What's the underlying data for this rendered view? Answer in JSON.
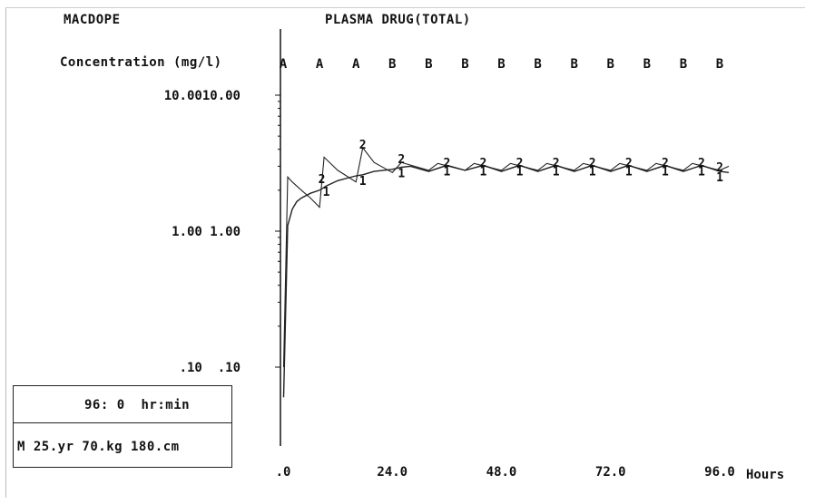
{
  "header": {
    "program": "MACDOPE",
    "plot_title": "PLASMA DRUG(TOTAL)",
    "ylabel": "Concentration (mg/l)"
  },
  "info": {
    "time_display": "96: 0  hr:min",
    "patient": "M 25.yr 70.kg 180.cm"
  },
  "chart_data": {
    "type": "line",
    "title": "PLASMA DRUG(TOTAL)",
    "ylabel": "Concentration (mg/l)",
    "xlabel": "Hours",
    "y_scale": "log",
    "ylim": [
      0.05,
      10
    ],
    "xlim": [
      0,
      100
    ],
    "y_ticks": [
      {
        "value": 10,
        "label": "10.0010.00"
      },
      {
        "value": 1,
        "label": "1.00 1.00"
      },
      {
        "value": 0.1,
        "label": ".10  .10"
      }
    ],
    "x_ticks": [
      {
        "value": 0,
        "label": ".0"
      },
      {
        "value": 24,
        "label": "24.0"
      },
      {
        "value": 48,
        "label": "48.0"
      },
      {
        "value": 72,
        "label": "72.0"
      },
      {
        "value": 96,
        "label": "96.0"
      }
    ],
    "dose_markers": [
      {
        "x": 0,
        "label": "A"
      },
      {
        "x": 8,
        "label": "A"
      },
      {
        "x": 16,
        "label": "A"
      },
      {
        "x": 24,
        "label": "B"
      },
      {
        "x": 32,
        "label": "B"
      },
      {
        "x": 40,
        "label": "B"
      },
      {
        "x": 48,
        "label": "B"
      },
      {
        "x": 56,
        "label": "B"
      },
      {
        "x": 64,
        "label": "B"
      },
      {
        "x": 72,
        "label": "B"
      },
      {
        "x": 80,
        "label": "B"
      },
      {
        "x": 88,
        "label": "B"
      },
      {
        "x": 96,
        "label": "B"
      }
    ],
    "series": [
      {
        "name": "1",
        "x": [
          0.1,
          1,
          2,
          3,
          4,
          6,
          8,
          9.5,
          12,
          16,
          17.5,
          20,
          24,
          26,
          28,
          32,
          36,
          40,
          44,
          48,
          52,
          56,
          60,
          64,
          68,
          72,
          76,
          80,
          84,
          88,
          92,
          96,
          98
        ],
        "values": [
          0.06,
          1.1,
          1.45,
          1.65,
          1.75,
          1.9,
          2.0,
          2.15,
          2.35,
          2.55,
          2.6,
          2.75,
          2.85,
          2.95,
          3.0,
          2.75,
          3.05,
          2.8,
          3.05,
          2.75,
          3.05,
          2.75,
          3.05,
          2.75,
          3.05,
          2.75,
          3.05,
          2.75,
          3.05,
          2.75,
          3.05,
          2.75,
          2.7
        ]
      },
      {
        "name": "2",
        "x": [
          0.1,
          1,
          2,
          4,
          6,
          8,
          9,
          12,
          16,
          17.5,
          20,
          24,
          26,
          32,
          34,
          40,
          42,
          48,
          50,
          56,
          58,
          64,
          66,
          72,
          74,
          80,
          82,
          88,
          90,
          96,
          98
        ],
        "values": [
          0.1,
          2.5,
          2.3,
          2.0,
          1.75,
          1.5,
          3.5,
          2.8,
          2.3,
          4.1,
          3.2,
          2.7,
          3.2,
          2.8,
          3.15,
          2.8,
          3.15,
          2.8,
          3.15,
          2.8,
          3.15,
          2.8,
          3.15,
          2.8,
          3.15,
          2.8,
          3.15,
          2.8,
          3.15,
          2.8,
          3.0
        ]
      }
    ],
    "series_markers": [
      {
        "series": "1",
        "label": "1",
        "x": [
          9.5,
          17.5,
          26,
          36,
          44,
          52,
          60,
          68,
          76,
          84,
          92,
          96
        ]
      },
      {
        "series": "2",
        "label": "2",
        "x": [
          8.5,
          17.5,
          26,
          36,
          44,
          52,
          60,
          68,
          76,
          84,
          92,
          96
        ]
      }
    ],
    "grid": false
  }
}
